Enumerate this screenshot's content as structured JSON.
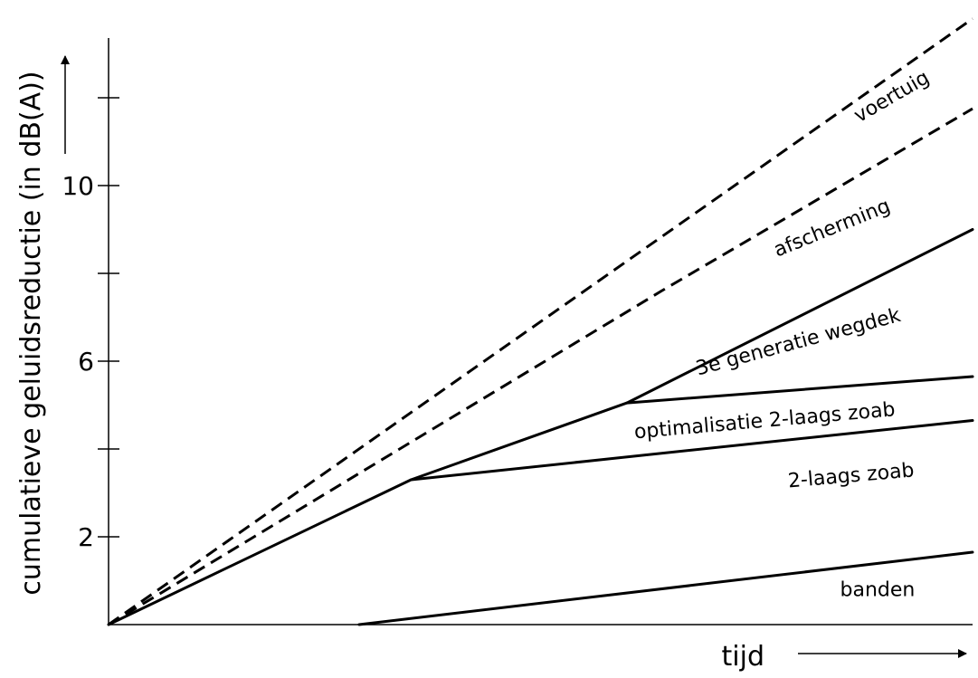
{
  "chart_data": {
    "type": "line",
    "ylabel": "cumulatieve geluidsreductie (in dB(A))",
    "xlabel": "tijd",
    "ylim": [
      0,
      13.5
    ],
    "xlim": [
      0,
      10
    ],
    "yticks": [
      0,
      2,
      4,
      6,
      8,
      10,
      12
    ],
    "ytick_labels": [
      {
        "value": 2,
        "label": "2"
      },
      {
        "value": 6,
        "label": "6"
      },
      {
        "value": 10,
        "label": "10"
      }
    ],
    "grid": false,
    "series": [
      {
        "style": "solid",
        "points": [
          [
            2.9,
            0
          ],
          [
            10,
            1.65
          ]
        ]
      },
      {
        "style": "solid",
        "points": [
          [
            0,
            0
          ],
          [
            3.5,
            3.3
          ],
          [
            10,
            4.65
          ]
        ]
      },
      {
        "style": "solid",
        "points": [
          [
            3.5,
            3.3
          ],
          [
            6,
            5.05
          ],
          [
            10,
            5.65
          ]
        ]
      },
      {
        "style": "solid",
        "points": [
          [
            6,
            5.05
          ],
          [
            10,
            9
          ]
        ]
      },
      {
        "style": "dashed",
        "points": [
          [
            0,
            0
          ],
          [
            6.4,
            7.6
          ],
          [
            10,
            11.75
          ]
        ]
      },
      {
        "style": "dashed",
        "points": [
          [
            0,
            0
          ],
          [
            10,
            13.8
          ]
        ]
      }
    ],
    "annotations": [
      {
        "text": "banden",
        "x": 8.9,
        "y": 0.65,
        "rotate": 0
      },
      {
        "text": "2-laags zoab",
        "x": 8.6,
        "y": 3.25,
        "rotate": -5
      },
      {
        "text": "optimalisatie 2-laags zoab",
        "x": 7.6,
        "y": 4.5,
        "rotate": -5
      },
      {
        "text": "3e generatie wegdek",
        "x": 8.0,
        "y": 6.3,
        "rotate": -15
      },
      {
        "text": "afscherming",
        "x": 8.4,
        "y": 8.9,
        "rotate": -22
      },
      {
        "text": "voertuig",
        "x": 9.1,
        "y": 11.9,
        "rotate": -30
      }
    ]
  }
}
